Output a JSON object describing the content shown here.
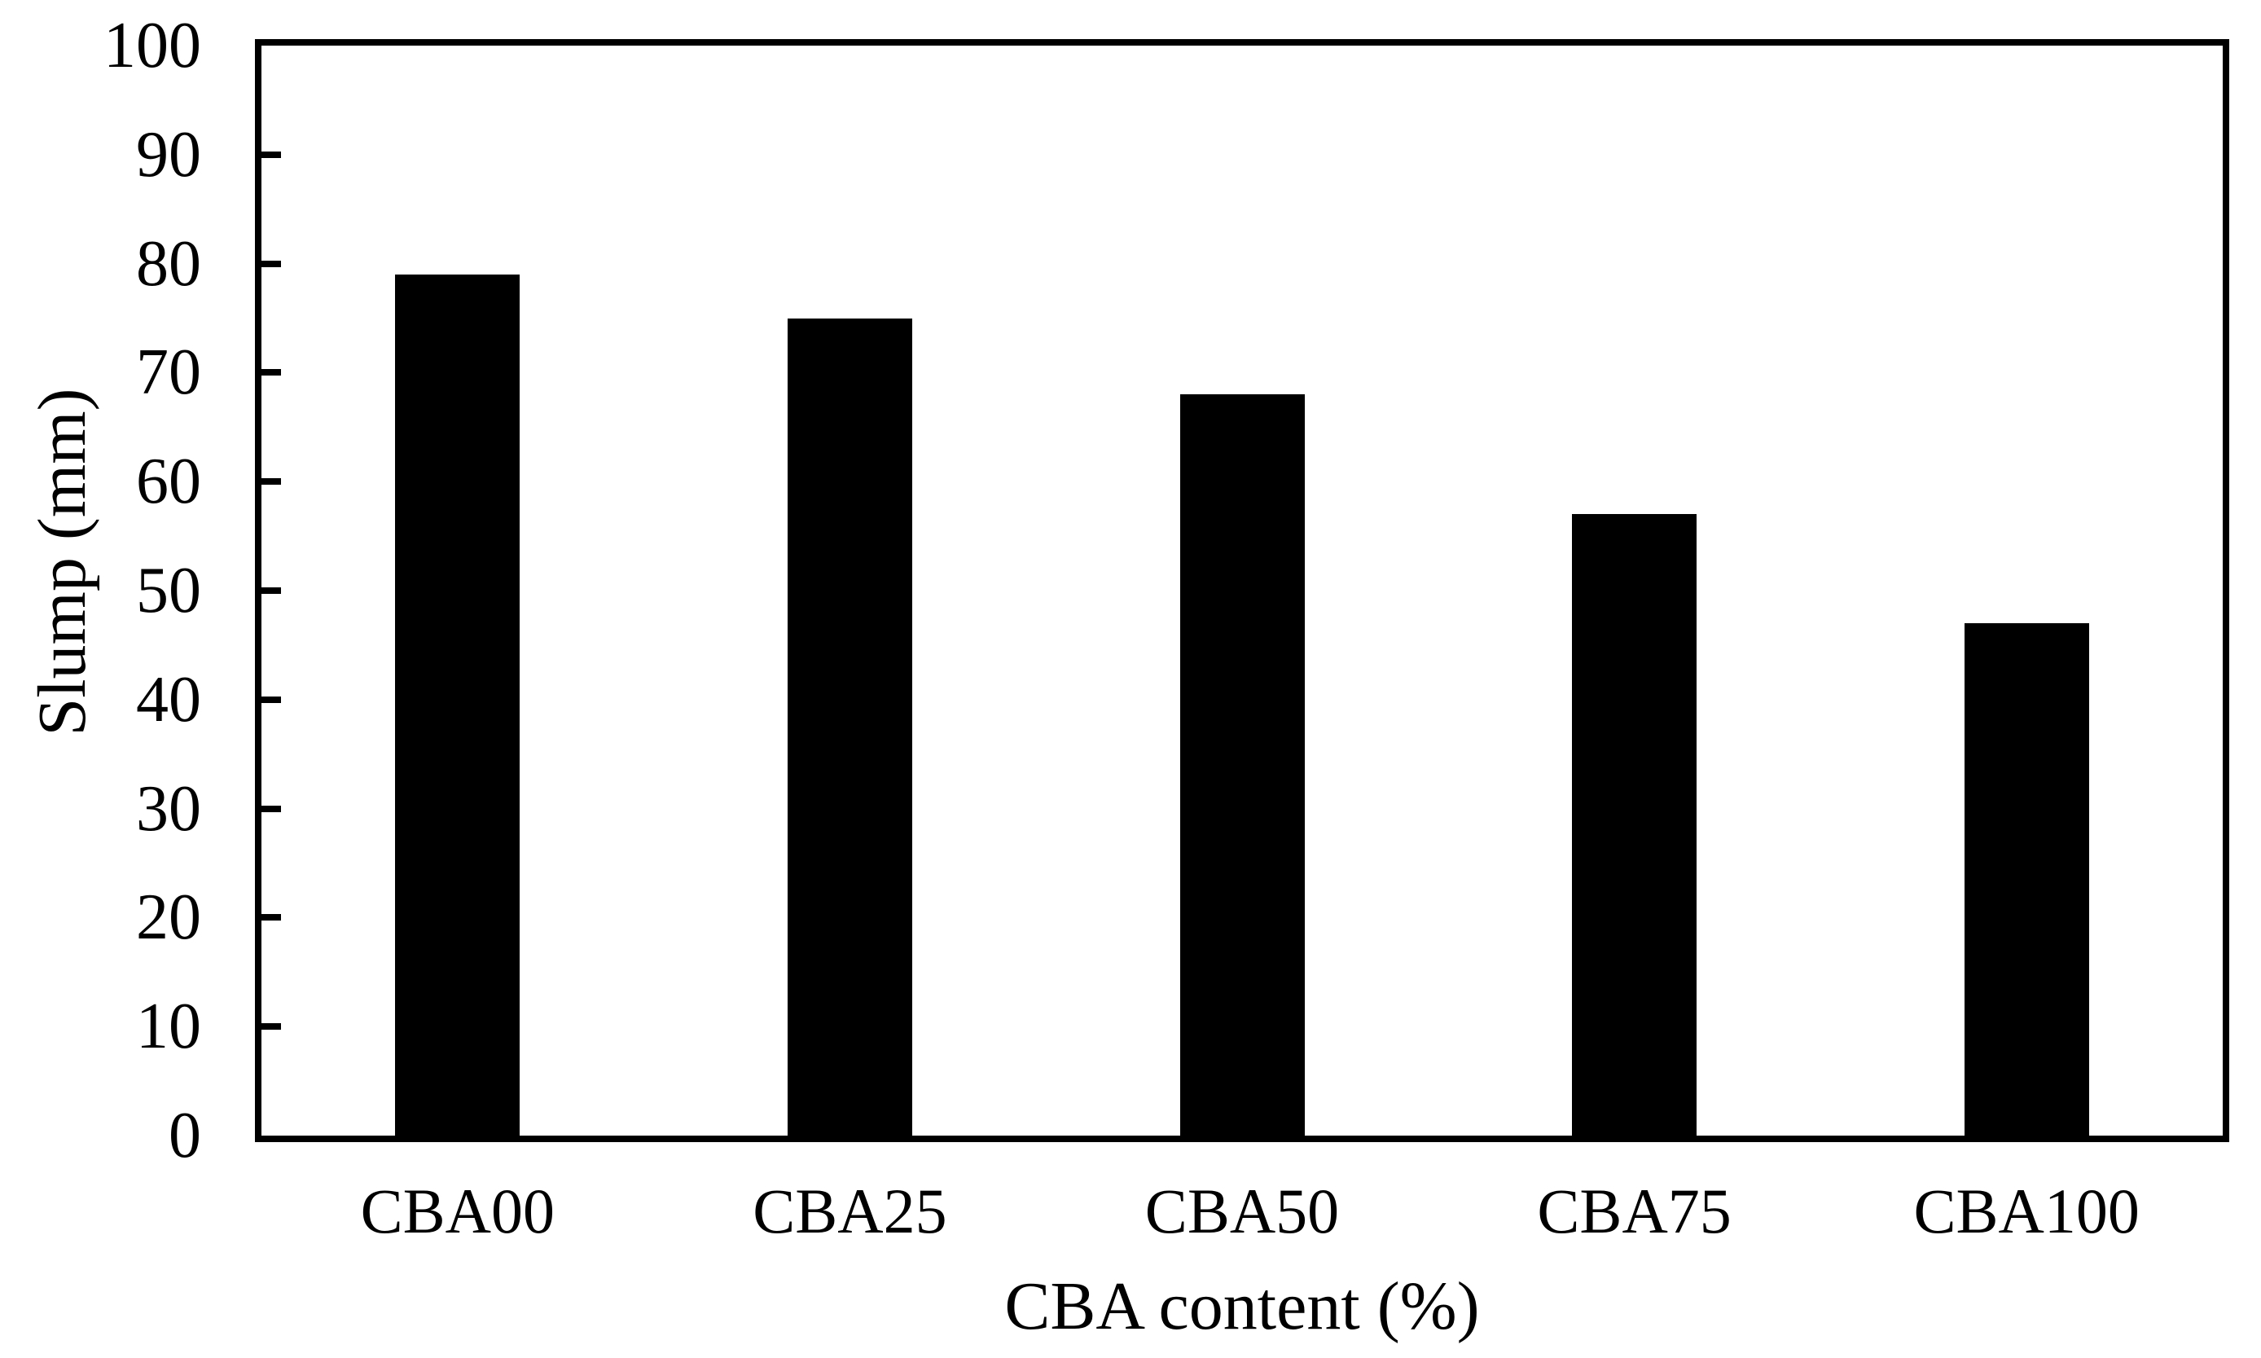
{
  "figure": {
    "background_color": "#ffffff",
    "bar_color": "#000000",
    "axis_color": "#000000",
    "text_color": "#000000"
  },
  "chart_data": {
    "type": "bar",
    "title": "",
    "categories": [
      "CBA00",
      "CBA25",
      "CBA50",
      "CBA75",
      "CBA100"
    ],
    "values": [
      79,
      75,
      68,
      57,
      47
    ],
    "xlabel": "CBA content (%)",
    "ylabel": "Slump (mm)",
    "ylim": [
      0,
      100
    ],
    "yticks": [
      0,
      10,
      20,
      30,
      40,
      50,
      60,
      70,
      80,
      90,
      100
    ],
    "grid": false,
    "legend_position": "none"
  }
}
